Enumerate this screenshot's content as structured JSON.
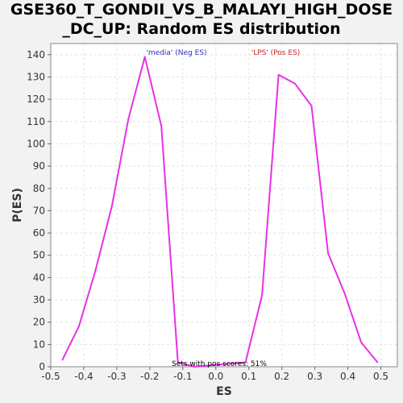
{
  "chart_data": {
    "type": "line",
    "title": "GSE360_T_GONDII_VS_B_MALAYI_HIGH_DOSE\n_DC_UP: Random ES distribution",
    "xlabel": "ES",
    "ylabel": "P(ES)",
    "xlim": [
      -0.5,
      0.55
    ],
    "ylim": [
      0,
      145
    ],
    "x_ticks": [
      "-0.5",
      "-0.4",
      "-0.3",
      "-0.2",
      "-0.1",
      "0.0",
      "0.1",
      "0.2",
      "0.3",
      "0.4",
      "0.5"
    ],
    "x_tick_values": [
      -0.5,
      -0.4,
      -0.3,
      -0.2,
      -0.1,
      0.0,
      0.1,
      0.2,
      0.3,
      0.4,
      0.5
    ],
    "y_ticks": [
      "0",
      "10",
      "20",
      "30",
      "40",
      "50",
      "60",
      "70",
      "80",
      "90",
      "100",
      "110",
      "120",
      "130",
      "140"
    ],
    "y_tick_values": [
      0,
      10,
      20,
      30,
      40,
      50,
      60,
      70,
      80,
      90,
      100,
      110,
      120,
      130,
      140
    ],
    "grid": true,
    "series": [
      {
        "color": "#e830e8",
        "x": [
          -0.465,
          -0.415,
          -0.365,
          -0.315,
          -0.265,
          -0.215,
          -0.165,
          -0.115,
          -0.065,
          0.09,
          0.14,
          0.19,
          0.24,
          0.29,
          0.34,
          0.39,
          0.44,
          0.49
        ],
        "y": [
          3,
          18,
          43,
          72,
          111,
          139,
          108,
          2,
          0,
          2,
          32,
          131,
          127,
          117,
          51,
          33,
          11,
          2
        ]
      }
    ],
    "legend": {
      "neg_label": "'media' (Neg ES)",
      "pos_label": "'LPS' (Pos ES)",
      "placement": "top"
    },
    "annotation": "Sets with pos scores: 51%"
  }
}
